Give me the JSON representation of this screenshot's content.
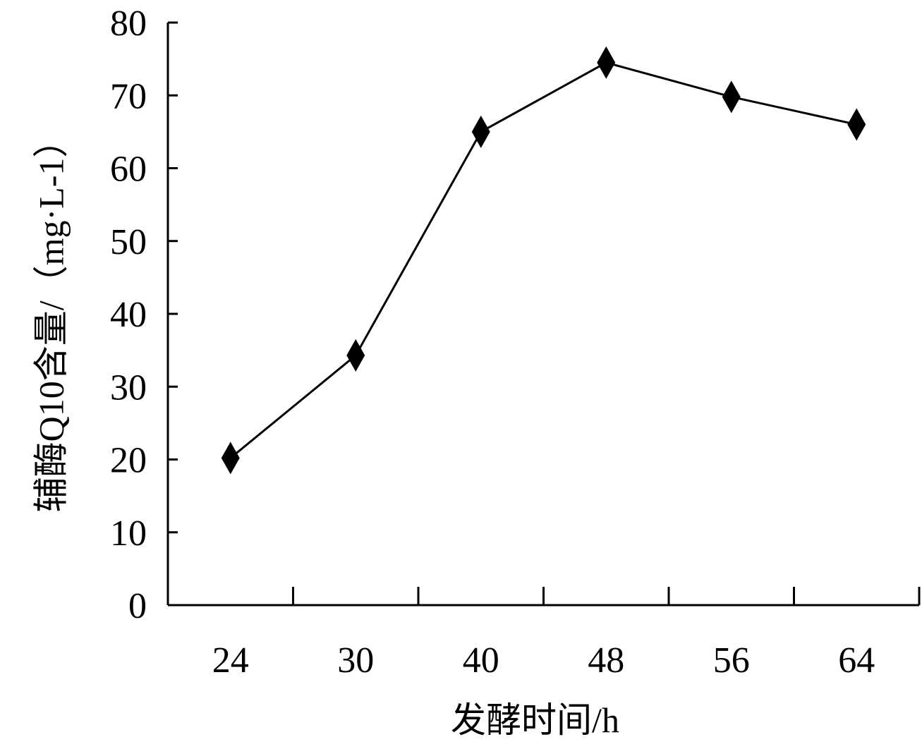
{
  "chart_data": {
    "type": "line",
    "categories": [
      "24",
      "30",
      "40",
      "48",
      "56",
      "64"
    ],
    "series": [
      {
        "values": [
          20.2,
          34.3,
          65.0,
          74.5,
          69.8,
          66.0
        ],
        "marker": "diamond",
        "color": "#000000"
      }
    ],
    "xlabel": "发酵时间/h",
    "ylabel": "辅酶Q10含量/（mg·L-1）",
    "ylim": [
      0,
      80
    ],
    "yticks": [
      0,
      10,
      20,
      30,
      40,
      50,
      60,
      70,
      80
    ],
    "grid": false,
    "legend": "none"
  }
}
